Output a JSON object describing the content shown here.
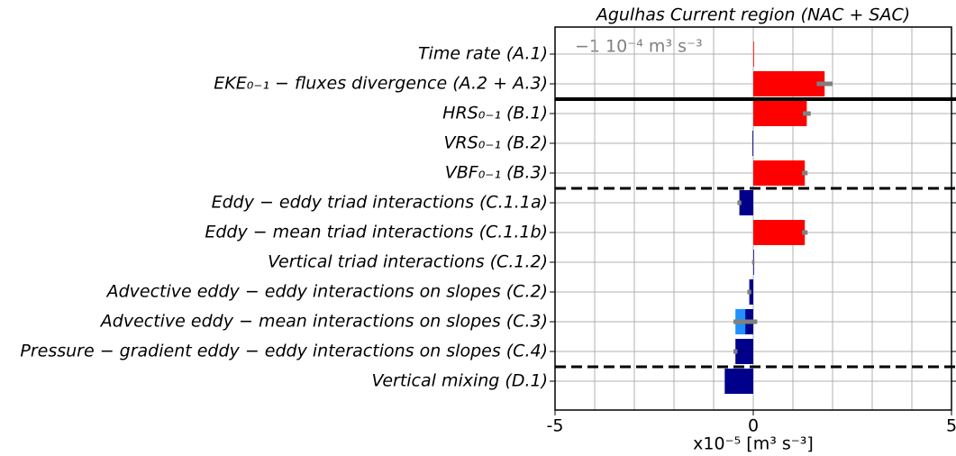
{
  "chart_data": {
    "type": "barh",
    "title": "Agulhas Current region (NAC + SAC)",
    "xlabel": "x10⁻⁵ [m³ s⁻³]",
    "annotation": "−1 10⁻⁴ m³ s⁻³",
    "categories": [
      "Time rate (A.1)",
      "EKE₀₋₁ − fluxes divergence (A.2 + A.3)",
      "HRS₀₋₁ (B.1)",
      "VRS₀₋₁ (B.2)",
      "VBF₀₋₁ (B.3)",
      "Eddy − eddy triad interactions (C.1.1a)",
      "Eddy − mean triad interactions (C.1.1b)",
      "Vertical triad interactions (C.1.2)",
      "Advective eddy − eddy interactions on slopes (C.2)",
      "Advective eddy − mean interactions on slopes (C.3)",
      "Pressure − gradient eddy − eddy interactions on slopes (C.4)",
      "Vertical mixing (D.1)"
    ],
    "series": [
      {
        "color": "#1e90ff",
        "values": [
          null,
          null,
          null,
          null,
          null,
          null,
          null,
          null,
          null,
          -0.45,
          null,
          null
        ]
      },
      {
        "colors": [
          "#ff0000",
          "#ff0000",
          "#ff0000",
          "#00008b",
          "#ff0000",
          "#00008b",
          "#ff0000",
          "#00008b",
          "#00008b",
          "#00008b",
          "#00008b",
          "#00008b"
        ],
        "values": [
          0,
          1.8,
          1.35,
          -0.02,
          1.3,
          -0.35,
          1.3,
          0,
          -0.1,
          -0.2,
          -0.45,
          -0.72
        ],
        "errors": [
          null,
          0.2,
          0.1,
          null,
          0.07,
          0.05,
          0.07,
          0.03,
          0.05,
          0.3,
          0.05,
          null
        ],
        "error_color": "#808080"
      }
    ],
    "xlim": [
      -5,
      5
    ],
    "xticks": [
      -5,
      0,
      5
    ],
    "xgrid": [
      -5,
      -4,
      -3,
      -2,
      -1,
      0,
      1,
      2,
      3,
      4,
      5
    ],
    "grid": true,
    "dividers": [
      {
        "after": 1,
        "style": "solid"
      },
      {
        "after": 4,
        "style": "dashed"
      },
      {
        "after": 10,
        "style": "dashed"
      }
    ]
  }
}
